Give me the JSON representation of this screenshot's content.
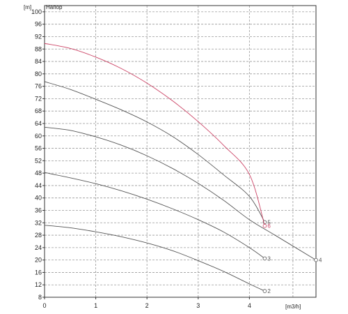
{
  "chart_data": {
    "type": "line",
    "title": "Напор",
    "ylabel": "[m]",
    "xlabel": "[m3/h]",
    "xlim": [
      0,
      5.3
    ],
    "ylim": [
      8,
      102
    ],
    "x_ticks": [
      "0",
      "1",
      "2",
      "3",
      "4"
    ],
    "y_ticks": [
      "8",
      "12",
      "16",
      "20",
      "24",
      "28",
      "32",
      "36",
      "40",
      "44",
      "48",
      "52",
      "56",
      "60",
      "64",
      "68",
      "72",
      "76",
      "80",
      "84",
      "88",
      "92",
      "96",
      "100"
    ],
    "grid": true,
    "series": [
      {
        "name": "2",
        "color": "#555555",
        "x": [
          0,
          0.5,
          1,
          1.5,
          2,
          2.5,
          3,
          3.5,
          4,
          4.3
        ],
        "y": [
          31.2,
          30.4,
          29.1,
          27.5,
          25.5,
          23.0,
          19.8,
          16.3,
          12.3,
          10.0
        ]
      },
      {
        "name": "3",
        "color": "#555555",
        "x": [
          0,
          0.5,
          1,
          1.5,
          2,
          2.5,
          3,
          3.5,
          4,
          4.3
        ],
        "y": [
          48.2,
          46.5,
          44.6,
          42.3,
          39.6,
          36.5,
          33.0,
          29.0,
          24.0,
          20.5
        ]
      },
      {
        "name": "4",
        "color": "#555555",
        "x": [
          0,
          0.5,
          1,
          1.5,
          2,
          2.5,
          3,
          3.5,
          4,
          4.5,
          5.3
        ],
        "y": [
          62.8,
          61.8,
          59.7,
          57.0,
          53.6,
          49.5,
          44.7,
          39.2,
          33.0,
          28.0,
          20.0
        ]
      },
      {
        "name": "5",
        "color": "#555555",
        "x": [
          0,
          0.5,
          1,
          1.5,
          2,
          2.5,
          3,
          3.5,
          4,
          4.3
        ],
        "y": [
          77.5,
          75.0,
          71.8,
          68.4,
          64.5,
          59.8,
          54.0,
          47.4,
          40.5,
          32.2
        ]
      },
      {
        "name": "6",
        "color": "#cc4466",
        "x": [
          0,
          0.5,
          1,
          1.5,
          2,
          2.5,
          3,
          3.5,
          4,
          4.3
        ],
        "y": [
          89.8,
          88.2,
          85.4,
          81.7,
          77.0,
          71.3,
          64.6,
          56.9,
          47.6,
          31.0
        ]
      }
    ]
  }
}
